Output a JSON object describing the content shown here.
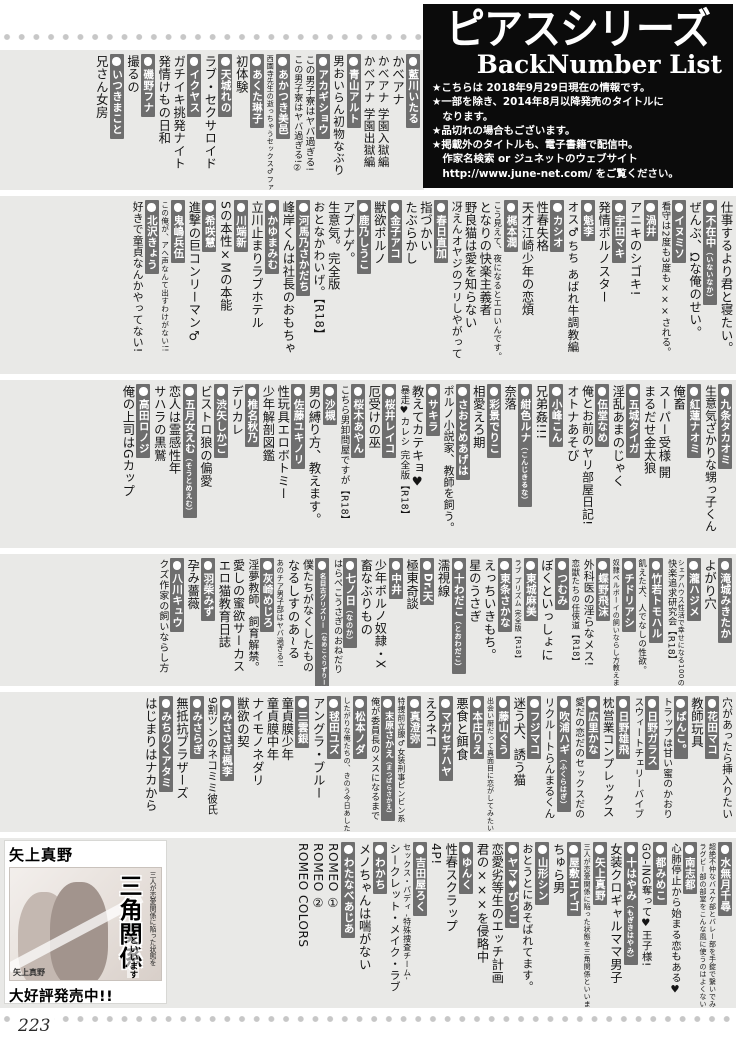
{
  "page": {
    "number": "223"
  },
  "header": {
    "title": "ピアスシリーズ",
    "subtitle": "BackNumber List",
    "notes": [
      "★こちらは 2018年9月29日現在の情報です。",
      "★一部を除き、2014年8月以降発売のタイトルに",
      "　なります。",
      "★品切れの場合もございます。",
      "★掲載外のタイトルも、電子書籍で配信中。",
      "　作家名検索 or ジュネットのウェブサイト",
      "　http://www.june-net.com/ をご覧ください。"
    ]
  },
  "ad": {
    "author_label": "矢上真野",
    "cover_text_top": "三人が恋愛関係に陥った状態を",
    "cover_title": "三角関係",
    "cover_text_bottom": "といいます",
    "cover_author": "矢上真野",
    "caption": "大好評発売中!!"
  },
  "colors": {
    "bar_gray": "#6e6e6e",
    "row_bg": "#e9e9e7",
    "header_bg": "#0b0b0b"
  },
  "rows": [
    {
      "items": [
        {
          "a": "藍川いたる"
        },
        {
          "t": "かべアナ"
        },
        {
          "t": "かべアナ 学園入獄編"
        },
        {
          "t": "かべアナ 学園出獄編"
        },
        {
          "a": "青山アルト"
        },
        {
          "t": "男おいらん初物なぶり"
        },
        {
          "a": "アカギショウ"
        },
        {
          "t": "この男子寮はヤバ過ぎる!"
        },
        {
          "t": "この男子寮はヤバ過ぎる!②"
        },
        {
          "a": "あかつき美邑"
        },
        {
          "t": "西園寺先生の逝っちゃうセックス♂ファイル"
        },
        {
          "a": "あくた琳子"
        },
        {
          "t": "初体験"
        },
        {
          "a": "天城れの"
        },
        {
          "t": "ラブ・セクサロイド"
        },
        {
          "a": "イクヤス"
        },
        {
          "t": "ガチイキ挑発ナイト"
        },
        {
          "t": "発情けもの日和"
        },
        {
          "a": "磯野フナ"
        },
        {
          "t": "撮るの"
        },
        {
          "a": "いつきまこと"
        },
        {
          "t": "兄さん女房"
        }
      ]
    },
    {
      "items": [
        {
          "t": "仕事するより君と寝たい。"
        },
        {
          "a": "不在中",
          "r": "いないなか"
        },
        {
          "t": "ぜんぶ、Ωな俺のせい。"
        },
        {
          "a": "イヌミソ"
        },
        {
          "t": "看守は2度も3度も×××される。"
        },
        {
          "a": "渦井"
        },
        {
          "t": "アニキのシゴキ!"
        },
        {
          "a": "宇田マキ"
        },
        {
          "t": "発情ポルノスター"
        },
        {
          "a": "魁李"
        },
        {
          "t": "オス♂ちち あばれ牛調教編"
        },
        {
          "a": "カシオ"
        },
        {
          "t": "性春失格"
        },
        {
          "t": "天才江崎少年の恋煩"
        },
        {
          "a": "梶本潤"
        },
        {
          "t": "こう見えて、夜になるとエロいんです。"
        },
        {
          "t": "となりの快楽主義者"
        },
        {
          "t": "野良猫は愛を知らない"
        },
        {
          "t": "冴えんオヤジのフリしやがって"
        },
        {
          "a": "春日直加"
        },
        {
          "t": "指づかい"
        },
        {
          "t": "たぶらかし"
        },
        {
          "a": "金子アコ"
        },
        {
          "t": "獣欲ポルノ"
        },
        {
          "a": "鹿乃しうこ"
        },
        {
          "t": "アブナゲ。"
        },
        {
          "t": "生意気。完全版"
        },
        {
          "t": "おとなかわいげ。【R18】"
        },
        {
          "a": "河馬乃さかだち"
        },
        {
          "t": "峰岸くんは社長のおもちゃ"
        },
        {
          "a": "かゆまみむ"
        },
        {
          "t": "立川止まりラブホテル"
        },
        {
          "a": "川端新"
        },
        {
          "t": "Sの本性×Mの本能"
        },
        {
          "a": "希咲慧"
        },
        {
          "t": "進撃の巨コンリーマン♂"
        },
        {
          "a": "鬼嶋兵伍"
        },
        {
          "t": "この俺が、アヘ声なんて出すわけがない!!"
        },
        {
          "a": "北沢きょう"
        },
        {
          "t": "好きで童貞なんかやってない!"
        }
      ]
    },
    {
      "items": [
        {
          "a": "九条タカオミ"
        },
        {
          "t": "生意気ざかりな甥っ子くん"
        },
        {
          "a": "紅蓮ナオミ"
        },
        {
          "t": "俺畜"
        },
        {
          "t": "スーパー受様 開"
        },
        {
          "t": "まるだせ金太狼"
        },
        {
          "a": "五城タイガ"
        },
        {
          "t": "淫乱あまのじゃく"
        },
        {
          "a": "伍堂なめ"
        },
        {
          "t": "俺とお前のヤリ部屋日記!"
        },
        {
          "t": "オトナあそび"
        },
        {
          "a": "小峰こん"
        },
        {
          "t": "兄弟姦!!!"
        },
        {
          "a": "紺色ルナ",
          "r": "こんじきるな"
        },
        {
          "t": "奈落"
        },
        {
          "a": "彩景でりこ"
        },
        {
          "t": "相愛えろ期"
        },
        {
          "a": "さおとめあげは"
        },
        {
          "t": "ポルノ小説家、教師を飼う。"
        },
        {
          "a": "サキラ"
        },
        {
          "t": "教えてカテキョ♥"
        },
        {
          "t": "暴走♥カレシ 完全版【R18】"
        },
        {
          "a": "桜井レイコ"
        },
        {
          "t": "厄受けの巫"
        },
        {
          "a": "桜木あやん"
        },
        {
          "t": "こちら男卸問屋ですが【R18】"
        },
        {
          "a": "沙槻"
        },
        {
          "t": "男の縛り方、教えます。"
        },
        {
          "a": "佐藤ユキノリ"
        },
        {
          "t": "性玩具エロボトミー"
        },
        {
          "t": "少年解剖図鑑"
        },
        {
          "a": "椎名秋乃"
        },
        {
          "t": "デリカレ"
        },
        {
          "a": "渋矢しかご"
        },
        {
          "t": "ビストロ狼の偏愛"
        },
        {
          "a": "五月女えむ",
          "r": "そうとめえむ"
        },
        {
          "t": "恋人は霊感性年"
        },
        {
          "t": "サハラの黒鷲"
        },
        {
          "a": "高田ロノジ"
        },
        {
          "t": "俺の上司はGカップ"
        }
      ]
    },
    {
      "items": [
        {
          "a": "滝城みきたか"
        },
        {
          "t": "よがり穴"
        },
        {
          "a": "瀧ハジメ"
        },
        {
          "t": "シェアハウス性活で幸せになる100の方法"
        },
        {
          "t": "快楽追求研究会【R18】"
        },
        {
          "a": "竹若トモハル"
        },
        {
          "t": "飢えた犬、人でなしの性欲。"
        },
        {
          "a": "チドリアシ"
        },
        {
          "t": "奴隷ベルボーイの飼いならし方教えます。"
        },
        {
          "a": "蝶野飛沫"
        },
        {
          "t": "外科医の淫らなメス!"
        },
        {
          "t": "恋獣たちの任侠道【R18】"
        },
        {
          "a": "つむみ"
        },
        {
          "t": "ぼくといっしょに"
        },
        {
          "a": "東城麻美"
        },
        {
          "t": "ラブ プリズム 完全版【R18】"
        },
        {
          "a": "東条さかな"
        },
        {
          "t": "えっちいきもち。"
        },
        {
          "t": "星のうさぎ"
        },
        {
          "a": "十わだこ",
          "r": "とおわだこ"
        },
        {
          "t": "濡視線"
        },
        {
          "a": "Dr.天"
        },
        {
          "t": "極東奇談"
        },
        {
          "a": "中井"
        },
        {
          "t": "少年ポルノ奴隷・X"
        },
        {
          "t": "畜なぶりもの"
        },
        {
          "a": "七ノ日",
          "r": "なのか"
        },
        {
          "t": "はらぺこうさぎのおねだり"
        },
        {
          "a": "名目古グリズリー",
          "r": "なめこぐりずりー"
        },
        {
          "t": "僕たちがなくしたもの"
        },
        {
          "t": "なるしすのあ~る"
        },
        {
          "t": "あのチア男子部はヤバ過ぎる!!"
        },
        {
          "a": "灰崎めじろ"
        },
        {
          "t": "淫夢教師、飼育解禁。"
        },
        {
          "t": "愛しの蜜欲サーカス"
        },
        {
          "t": "エロ猫教育日誌"
        },
        {
          "a": "羽柴みず"
        },
        {
          "t": "孕み薔薇"
        },
        {
          "a": "八川キュウ"
        },
        {
          "t": "クズ作家の飼いならし方"
        }
      ]
    },
    {
      "items": [
        {
          "t": "穴があったら挿入りたい"
        },
        {
          "a": "花田マコ"
        },
        {
          "t": "教師玩具"
        },
        {
          "a": "ぱんこ。"
        },
        {
          "t": "トラップは甘い蜜のかおり"
        },
        {
          "a": "日野ガラス"
        },
        {
          "t": "スウィートチェリーバイブ"
        },
        {
          "a": "日野雄飛"
        },
        {
          "t": "枕営業コンプレックス"
        },
        {
          "a": "広里かな"
        },
        {
          "t": "愛だの恋だのセックスだの"
        },
        {
          "a": "吹浦ハギ",
          "r": "ふくらはぎ"
        },
        {
          "t": "リクルートらんまるくん"
        },
        {
          "a": "フジマコ"
        },
        {
          "t": "迷う犬、誘う猫"
        },
        {
          "a": "藤山ぐう"
        },
        {
          "t": "出会い厨だって真面目に恋がしてみたい"
        },
        {
          "a": "本庄りえ"
        },
        {
          "t": "悪食と餌食"
        },
        {
          "a": "マガセチハヤ"
        },
        {
          "t": "えろネコ"
        },
        {
          "a": "真澄弥"
        },
        {
          "t": "特捜前立腺♂女装刑事ビンビン系"
        },
        {
          "a": "末原さかえ",
          "r": "まつばらさかえ"
        },
        {
          "t": "俺が委員長のメスになるまで"
        },
        {
          "a": "松本ノダ"
        },
        {
          "t": "したがりな俺たちの、きのう今日あした"
        },
        {
          "a": "毬田ユズ"
        },
        {
          "t": "アングラ・ブルー"
        },
        {
          "a": "三雲銀"
        },
        {
          "t": "童貞膜少年"
        },
        {
          "t": "童貞膜中年"
        },
        {
          "t": "ナイモノネダリ"
        },
        {
          "t": "獣欲の契"
        },
        {
          "a": "みささぎ楓李"
        },
        {
          "t": "9割ツンのネコミミ彼氏"
        },
        {
          "a": "みさらぎ"
        },
        {
          "t": "無抵抗ブラザーズ"
        },
        {
          "a": "みちのくアタミ"
        },
        {
          "t": "はじまりはナカから"
        }
      ]
    },
    {
      "items": [
        {
          "a": "水無月千尋"
        },
        {
          "t": "超絶不仲なバスケ部とバレー部を手錠で繋いでみた結果"
        },
        {
          "t": "ラグビー部の部室をこんな風に使うのはよくないと思います。"
        },
        {
          "a": "南志都"
        },
        {
          "t": "心肺停止から始まる恋もある♥"
        },
        {
          "a": "都みめこ"
        },
        {
          "t": "GO-ING奪って♥王子様!"
        },
        {
          "a": "十はやみ",
          "r": "もぎきはやみ"
        },
        {
          "t": "女装クロギャルママ男子"
        },
        {
          "a": "矢上真野"
        },
        {
          "t": "三人が恋愛関係に陥った状態を三角関係といいます"
        },
        {
          "a": "屋敷エイゴ"
        },
        {
          "t": "ちゅら男"
        },
        {
          "a": "山形シン"
        },
        {
          "t": "おとうとにあそばれてます。"
        },
        {
          "a": "ヤマ♥ぴっこ"
        },
        {
          "t": "恋愛劣等生のエッチ計画"
        },
        {
          "t": "君の×××を侵略中"
        },
        {
          "a": "ゆんく"
        },
        {
          "t": "性春スクラップ"
        },
        {
          "t": "4P!"
        },
        {
          "a": "吉田屋ろく"
        },
        {
          "t": "セックス・バディ -特殊捜査チーム-"
        },
        {
          "t": "シークレット・メイク・ラブ"
        },
        {
          "a": "わかち"
        },
        {
          "t": "メノちゃんは喘がない"
        },
        {
          "a": "わたなべあじあ"
        },
        {
          "t": "ROMEO ①"
        },
        {
          "t": "ROMEO ②"
        },
        {
          "t": "ROMEO COLORS"
        }
      ]
    }
  ]
}
